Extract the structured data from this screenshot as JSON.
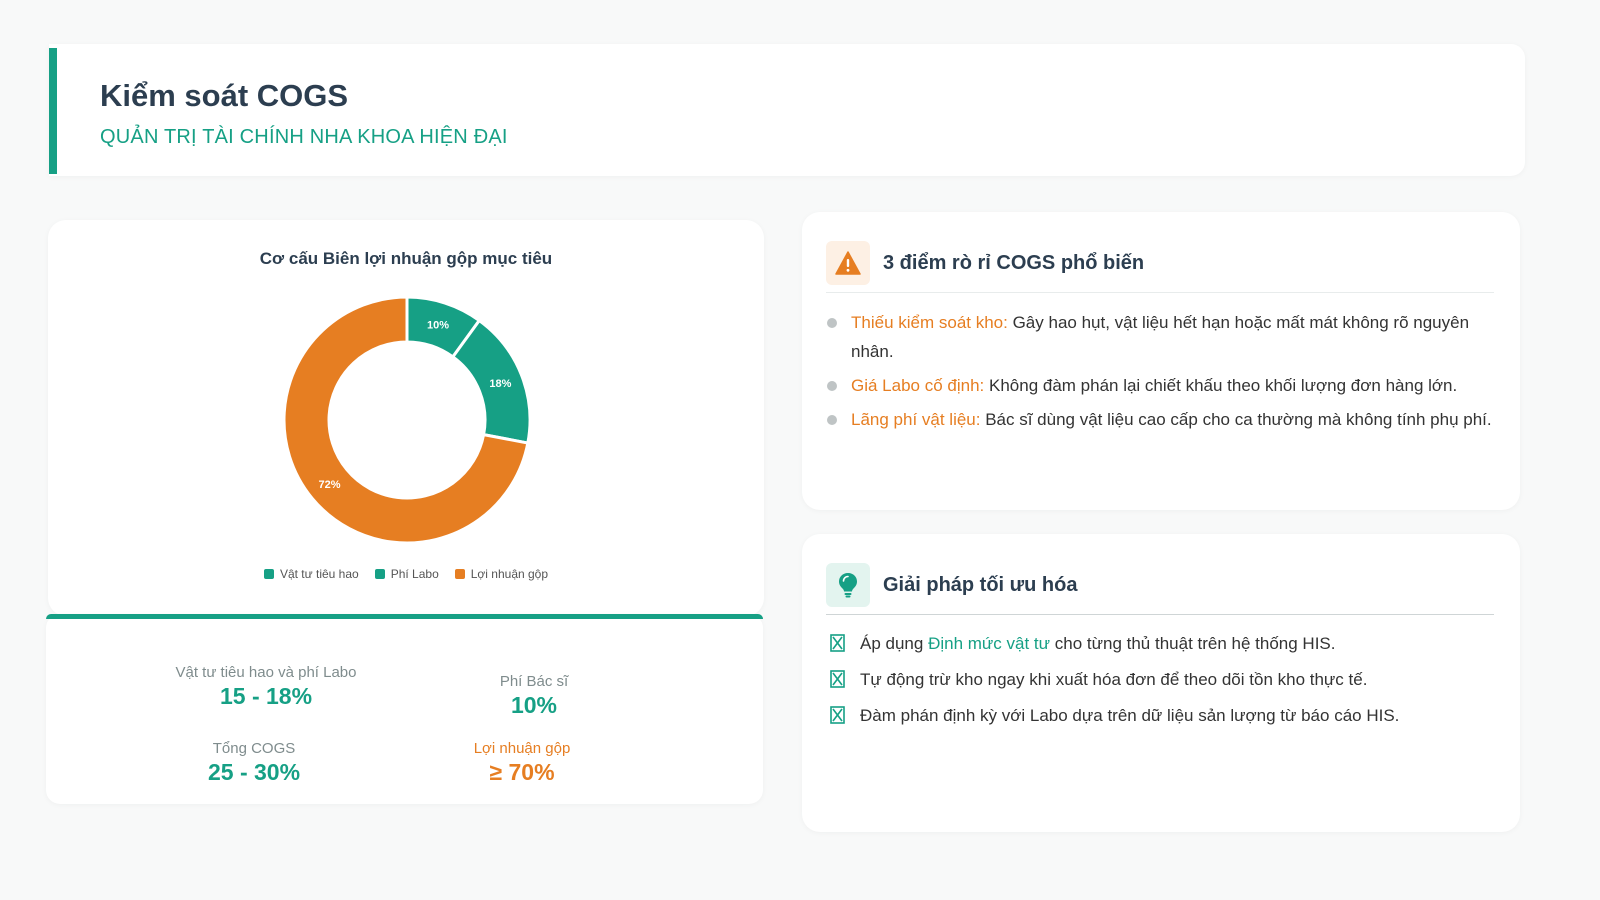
{
  "header": {
    "title": "Kiểm soát COGS",
    "subtitle": "QUẢN TRỊ TÀI CHÍNH NHA KHOA HIỆN ĐẠI",
    "accent_color": "#16a085"
  },
  "chart_data": {
    "type": "pie",
    "style": "donut",
    "title": "Cơ cấu Biên lợi nhuận gộp mục tiêu",
    "categories": [
      "Vật tư tiêu hao",
      "Phí Labo",
      "Lợi nhuận gộp"
    ],
    "values": [
      10,
      18,
      72
    ],
    "labels": [
      "10%",
      "18%",
      "72%"
    ],
    "colors": [
      "#16a085",
      "#16a085",
      "#e67e22"
    ],
    "legend_position": "bottom"
  },
  "stats": {
    "consumables_labo": {
      "label": "Vật tư tiêu hao và phí Labo",
      "value": "15 - 18%"
    },
    "doctor_fee": {
      "label": "Phí Bác sĩ",
      "value": "10%"
    },
    "total_cogs": {
      "label": "Tổng COGS",
      "value": "25 - 30%"
    },
    "gross_profit": {
      "label": "Lợi nhuận gộp",
      "value": "≥ 70%"
    }
  },
  "leaks": {
    "icon": "warning-icon",
    "title": "3 điểm rò rỉ COGS phổ biến",
    "items": [
      {
        "highlight": "Thiếu kiểm soát kho:",
        "text": " Gây hao hụt, vật liệu hết hạn hoặc mất mát không rõ nguyên nhân."
      },
      {
        "highlight": "Giá Labo cố định:",
        "text": " Không đàm phán lại chiết khấu theo khối lượng đơn hàng lớn."
      },
      {
        "highlight": "Lãng phí vật liệu:",
        "text": " Bác sĩ dùng vật liệu cao cấp cho ca thường mà không tính phụ phí."
      }
    ]
  },
  "solutions": {
    "icon": "lightbulb-icon",
    "title": "Giải pháp tối ưu hóa",
    "items": [
      {
        "before": "Áp dụng ",
        "highlight": "Định mức vật tư",
        "after": " cho từng thủ thuật trên hệ thống HIS."
      },
      {
        "before": "Tự động trừ kho ngay khi xuất hóa đơn để theo dõi tồn kho thực tế.",
        "highlight": "",
        "after": ""
      },
      {
        "before": "Đàm phán định kỳ với Labo dựa trên dữ liệu sản lượng từ báo cáo HIS.",
        "highlight": "",
        "after": ""
      }
    ]
  },
  "colors": {
    "green": "#16a085",
    "orange": "#e67e22",
    "dark": "#2c3e50"
  }
}
